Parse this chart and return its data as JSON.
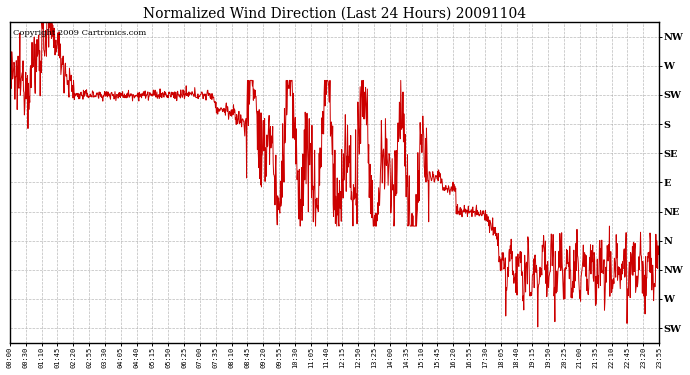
{
  "title": "Normalized Wind Direction (Last 24 Hours) 20091104",
  "copyright": "Copyright 2009 Cartronics.com",
  "line_color": "#cc0000",
  "bg_color": "#ffffff",
  "grid_color": "#aaaaaa",
  "plot_bg_color": "#ffffff",
  "ytick_labels": [
    "NW",
    "W",
    "SW",
    "S",
    "SE",
    "E",
    "NE",
    "N",
    "NW",
    "W",
    "SW"
  ],
  "ytick_values": [
    10,
    9,
    8,
    7,
    6,
    5,
    4,
    3,
    2,
    1,
    0
  ],
  "ylim": [
    -0.5,
    10.5
  ],
  "xtick_labels": [
    "00:00",
    "00:30",
    "01:10",
    "01:45",
    "02:20",
    "02:55",
    "03:30",
    "04:05",
    "04:40",
    "05:15",
    "05:50",
    "06:25",
    "07:00",
    "07:35",
    "08:10",
    "08:45",
    "09:20",
    "09:55",
    "10:30",
    "11:05",
    "11:40",
    "12:15",
    "12:50",
    "13:25",
    "14:00",
    "14:35",
    "15:10",
    "15:45",
    "16:20",
    "16:55",
    "17:30",
    "18:05",
    "18:40",
    "19:15",
    "19:50",
    "20:25",
    "21:00",
    "21:35",
    "22:10",
    "22:45",
    "23:20",
    "23:55"
  ],
  "figsize": [
    6.9,
    3.75
  ],
  "dpi": 100
}
